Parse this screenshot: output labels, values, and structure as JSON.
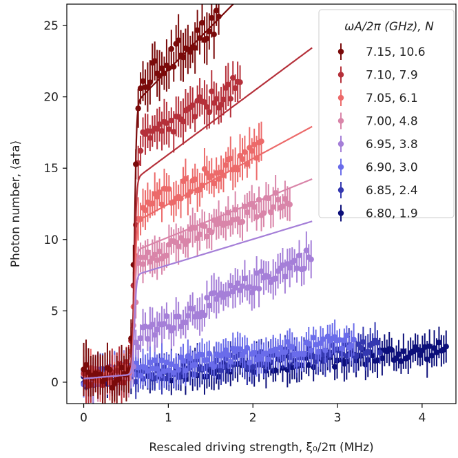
{
  "chart_data": {
    "type": "scatter",
    "xlabel": "Rescaled driving strength, ξ₀/2π (MHz)",
    "ylabel": "Photon number, ⟨a†a⟩",
    "xlim": [
      -0.2,
      4.4
    ],
    "ylim": [
      -1.5,
      26.5
    ],
    "x_ticks": [
      0,
      1,
      2,
      3,
      4
    ],
    "y_ticks": [
      0,
      5,
      10,
      15,
      20,
      25
    ],
    "grid": false,
    "legend_title": "ωA/2π (GHz), N",
    "legend_position": "top-right",
    "series": [
      {
        "name": "7.15,  10.6",
        "color": "#7a0a0a",
        "x_end": 1.62,
        "plateau": 20.5,
        "slope": 5.0,
        "fit_plateau": 19.5,
        "fit_slope": 6.0,
        "fit_x_end": 2.7,
        "err": 1.5
      },
      {
        "name": "7.10,  7.9",
        "color": "#b5303a",
        "x_end": 1.85,
        "plateau": 16.5,
        "slope": 3.5,
        "fit_plateau": 14.2,
        "fit_slope": 4.4,
        "fit_x_end": 2.7,
        "err": 1.3
      },
      {
        "name": "7.05,  6.1",
        "color": "#ec6a6a",
        "x_end": 2.1,
        "plateau": 12.0,
        "slope": 2.8,
        "fit_plateau": 11.2,
        "fit_slope": 3.2,
        "fit_x_end": 2.7,
        "err": 1.2
      },
      {
        "name": "7.00,  4.8",
        "color": "#d985a9",
        "x_end": 2.45,
        "plateau": 8.5,
        "slope": 2.5,
        "fit_plateau": 9.2,
        "fit_slope": 2.4,
        "fit_x_end": 2.7,
        "err": 1.1
      },
      {
        "name": "6.95,  3.8",
        "color": "#a57fd8",
        "x_end": 2.7,
        "plateau": 3.0,
        "slope": 2.8,
        "fit_plateau": 7.5,
        "fit_slope": 1.8,
        "fit_x_end": 2.7,
        "err": 1.1
      },
      {
        "name": "6.90,  3.0",
        "color": "#6a6cea",
        "x_end": 3.2,
        "plateau": 0.5,
        "slope": 0.9,
        "fit_plateau": null,
        "fit_slope": null,
        "fit_x_end": null,
        "err": 1.0
      },
      {
        "name": "6.85,  2.4",
        "color": "#3438b0",
        "x_end": 3.5,
        "plateau": 0.3,
        "slope": 0.65,
        "fit_plateau": null,
        "fit_slope": null,
        "fit_x_end": null,
        "err": 1.0
      },
      {
        "name": "6.80,  1.9",
        "color": "#0c0f7a",
        "x_end": 4.3,
        "plateau": 0.2,
        "slope": 0.48,
        "fit_plateau": null,
        "fit_slope": null,
        "fit_x_end": null,
        "err": 1.0
      }
    ],
    "transition_x": 0.6
  }
}
